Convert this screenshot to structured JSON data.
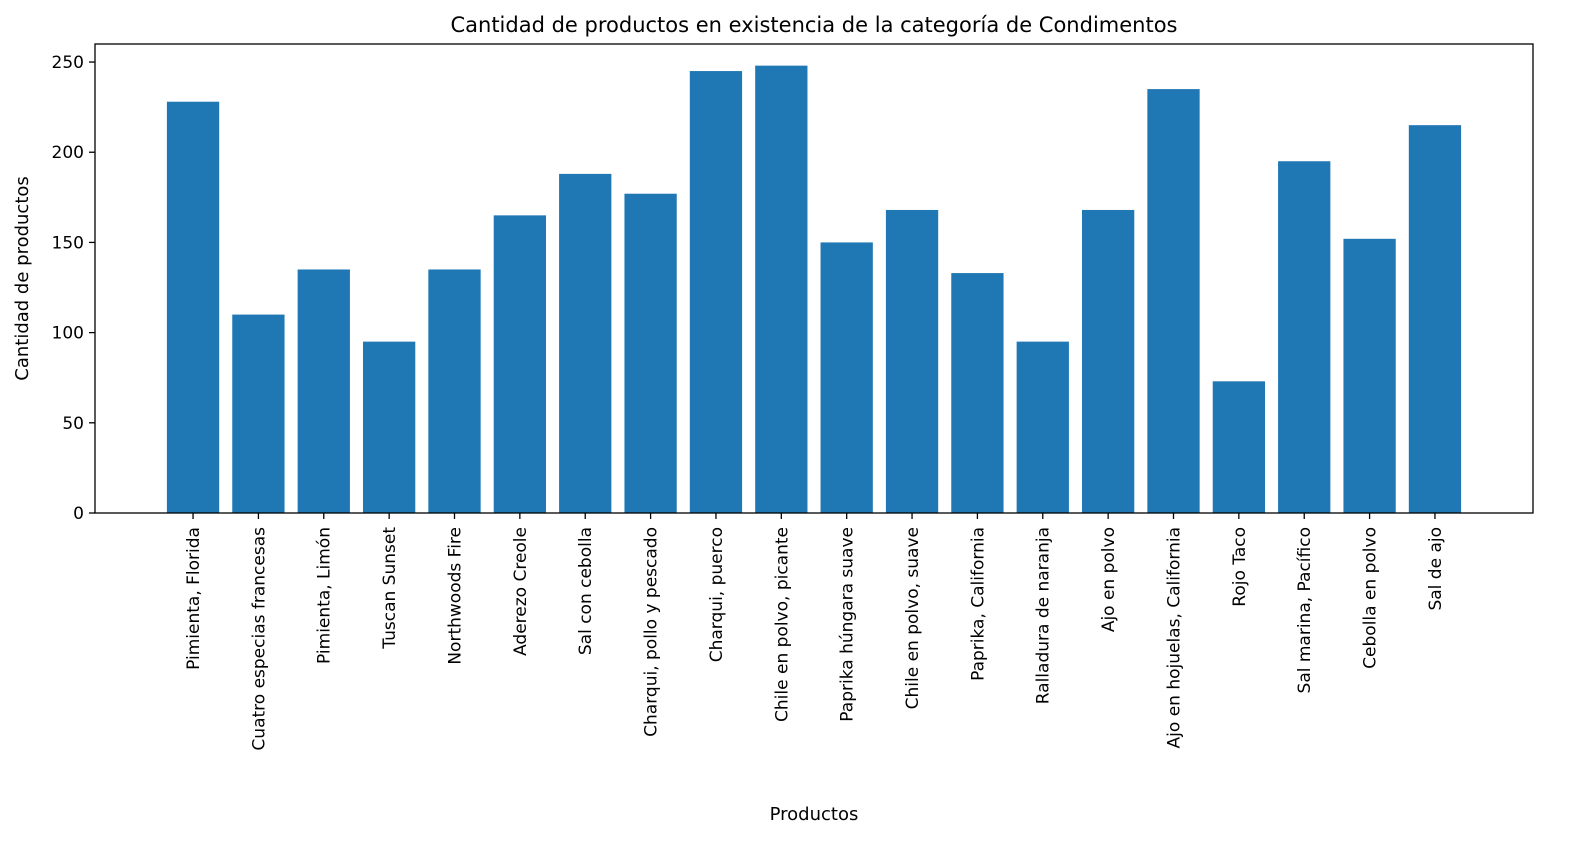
{
  "chart_data": {
    "type": "bar",
    "title": "Cantidad de productos en existencia de la categoría de Condimentos",
    "xlabel": "Productos",
    "ylabel": "Cantidad de productos",
    "categories": [
      "Pimienta, Florida",
      "Cuatro especias francesas",
      "Pimienta, Limón",
      "Tuscan Sunset",
      "Northwoods Fire",
      "Aderezo Creole",
      "Sal con cebolla",
      "Charqui, pollo y pescado",
      "Charqui, puerco",
      "Chile en polvo, picante",
      "Paprika húngara suave",
      "Chile en polvo, suave",
      "Paprika, California",
      "Ralladura de naranja",
      "Ajo en polvo",
      "Ajo en hojuelas, California",
      "Rojo Taco",
      "Sal marina, Pacífico",
      "Cebolla en polvo",
      "Sal de ajo"
    ],
    "values": [
      228,
      110,
      135,
      95,
      135,
      165,
      188,
      177,
      245,
      248,
      150,
      168,
      133,
      95,
      168,
      235,
      73,
      195,
      152,
      215
    ],
    "yticks": [
      0,
      50,
      100,
      150,
      200,
      250
    ],
    "ylim": [
      0,
      260
    ],
    "bar_color": "#1f77b4",
    "grid": false,
    "legend": false
  }
}
